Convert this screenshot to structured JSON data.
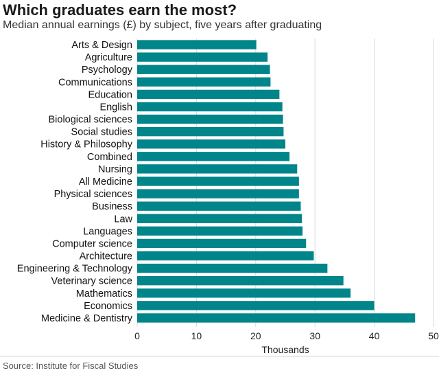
{
  "header": {
    "title": "Which graduates earn the most?",
    "subtitle": "Median annual earnings (£) by subject, five years after graduating"
  },
  "footer": {
    "source": "Source: Institute for Fiscal Studies"
  },
  "chart_data": {
    "type": "bar",
    "orientation": "horizontal",
    "categories": [
      "Arts & Design",
      "Agriculture",
      "Psychology",
      "Communications",
      "Education",
      "English",
      "Biological sciences",
      "Social studies",
      "History & Philosophy",
      "Combined",
      "Nursing",
      "All Medicine",
      "Physical sciences",
      "Business",
      "Law",
      "Languages",
      "Computer science",
      "Architecture",
      "Engineering & Technology",
      "Veterinary science",
      "Mathematics",
      "Economics",
      "Medicine & Dentistry"
    ],
    "values": [
      20.1,
      22.0,
      22.4,
      22.5,
      24.0,
      24.5,
      24.6,
      24.7,
      25.0,
      25.7,
      27.0,
      27.3,
      27.3,
      27.6,
      27.8,
      27.9,
      28.5,
      29.8,
      32.1,
      34.8,
      36.0,
      40.0,
      46.9
    ],
    "xlabel": "Thousands",
    "xlim": [
      0,
      50
    ],
    "xticks": [
      "0",
      "10",
      "20",
      "30",
      "40",
      "50"
    ],
    "bar_color": "#00858a",
    "grid": true,
    "legend": "none"
  }
}
